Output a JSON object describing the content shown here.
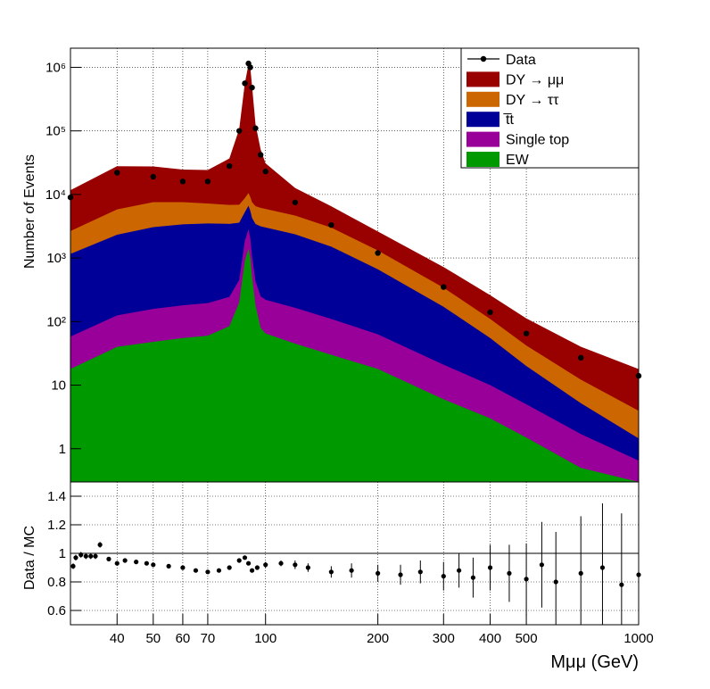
{
  "chart_data": [
    {
      "type": "area",
      "stacked": true,
      "x_scale": "log",
      "y_scale": "log",
      "xlim": [
        30,
        1000
      ],
      "ylim": [
        0.3,
        2000000
      ],
      "ylabel": "Number of Events",
      "grid": true,
      "legend_position": "top-right",
      "y_tick_labels": [
        "1",
        "10",
        "10²",
        "10³",
        "10⁴",
        "10⁵",
        "10⁶"
      ],
      "y_tick_values": [
        1,
        10,
        100,
        1000,
        10000,
        100000,
        1000000
      ],
      "legend": [
        {
          "label": "Data",
          "marker": "point-line",
          "color": "#000000"
        },
        {
          "label": "DY → μμ",
          "color": "#990000"
        },
        {
          "label": "DY → ττ",
          "color": "#cc6600"
        },
        {
          "label": "t̅t",
          "color": "#000099"
        },
        {
          "label": "Single top",
          "color": "#990099"
        },
        {
          "label": "EW",
          "color": "#009900"
        }
      ],
      "series": [
        {
          "name": "EW",
          "color": "#009900",
          "x": [
            30,
            40,
            50,
            60,
            70,
            80,
            85,
            88,
            90,
            91,
            92,
            94,
            97,
            100,
            120,
            150,
            200,
            300,
            400,
            500,
            700,
            1000
          ],
          "values": [
            18,
            40,
            48,
            55,
            60,
            85,
            200,
            900,
            1400,
            1000,
            500,
            180,
            80,
            65,
            45,
            30,
            18,
            6,
            3,
            1.5,
            0.5,
            0.25
          ]
        },
        {
          "name": "Single top",
          "color": "#990099",
          "x": [
            30,
            40,
            50,
            60,
            70,
            80,
            85,
            88,
            90,
            91,
            92,
            94,
            97,
            100,
            120,
            150,
            200,
            300,
            400,
            500,
            700,
            1000
          ],
          "values": [
            40,
            85,
            110,
            125,
            135,
            160,
            250,
            950,
            1450,
            1050,
            560,
            250,
            170,
            155,
            120,
            80,
            45,
            15,
            7,
            3.5,
            1.2,
            0.4
          ]
        },
        {
          "name": "t̅t",
          "color": "#000099",
          "x": [
            30,
            40,
            50,
            60,
            70,
            80,
            85,
            88,
            90,
            91,
            92,
            94,
            97,
            100,
            120,
            150,
            200,
            300,
            400,
            500,
            700,
            1000
          ],
          "values": [
            1100,
            2200,
            2900,
            3200,
            3300,
            3200,
            3150,
            3400,
            3800,
            3500,
            3200,
            3000,
            2900,
            2800,
            2200,
            1400,
            600,
            150,
            45,
            15,
            3.5,
            0.8
          ]
        },
        {
          "name": "DY → ττ",
          "color": "#cc6600",
          "x": [
            30,
            40,
            50,
            60,
            70,
            80,
            85,
            88,
            90,
            91,
            92,
            94,
            97,
            100,
            120,
            150,
            200,
            300,
            400,
            500,
            700,
            1000
          ],
          "values": [
            1500,
            3500,
            4500,
            4200,
            3700,
            3400,
            3300,
            3500,
            3900,
            3600,
            3300,
            3100,
            3000,
            2900,
            2300,
            1500,
            650,
            170,
            55,
            22,
            7,
            2.5
          ]
        },
        {
          "name": "DY → μμ",
          "color": "#990000",
          "x": [
            30,
            40,
            50,
            60,
            70,
            80,
            85,
            88,
            90,
            91,
            92,
            94,
            97,
            100,
            120,
            150,
            200,
            300,
            400,
            500,
            700,
            1000
          ],
          "values": [
            9000,
            22000,
            20000,
            17000,
            17000,
            30000,
            100000,
            550000,
            1100000,
            1000000,
            500000,
            120000,
            45000,
            25000,
            8000,
            3500,
            1300,
            380,
            150,
            70,
            28,
            14
          ]
        }
      ],
      "data_points": {
        "name": "Data",
        "x": [
          30,
          40,
          50,
          60,
          70,
          80,
          85,
          88,
          90,
          91,
          92,
          94,
          97,
          100,
          120,
          150,
          200,
          300,
          400,
          500,
          700,
          1000
        ],
        "values": [
          9000,
          22000,
          19000,
          16000,
          16000,
          28000,
          100000,
          560000,
          1150000,
          1000000,
          480000,
          110000,
          42000,
          23000,
          7500,
          3300,
          1200,
          350,
          140,
          65,
          27,
          14
        ]
      }
    },
    {
      "type": "scatter",
      "x_scale": "log",
      "xlim": [
        30,
        1000
      ],
      "ylim": [
        0.5,
        1.5
      ],
      "xlabel": "Mμμ (GeV)",
      "ylabel": "Data / MC",
      "grid": true,
      "reference_line": 1,
      "y_tick_labels": [
        "0.6",
        "0.8",
        "1",
        "1.2",
        "1.4"
      ],
      "y_tick_values": [
        0.6,
        0.8,
        1.0,
        1.2,
        1.4
      ],
      "x_tick_labels": [
        "40",
        "50",
        "60",
        "70",
        "100",
        "200",
        "300",
        "400",
        "500",
        "1000"
      ],
      "x_tick_values": [
        40,
        50,
        60,
        70,
        100,
        200,
        300,
        400,
        500,
        1000
      ],
      "x": [
        30.5,
        31,
        32,
        33,
        34,
        35,
        36,
        38,
        40,
        42,
        45,
        48,
        50,
        55,
        60,
        65,
        70,
        75,
        80,
        85,
        88,
        90,
        92,
        95,
        100,
        110,
        120,
        130,
        150,
        170,
        200,
        230,
        260,
        300,
        330,
        360,
        400,
        450,
        500,
        550,
        600,
        700,
        800,
        900,
        1000
      ],
      "values": [
        0.91,
        0.97,
        0.99,
        0.98,
        0.98,
        0.98,
        1.06,
        0.96,
        0.93,
        0.95,
        0.94,
        0.93,
        0.92,
        0.91,
        0.9,
        0.88,
        0.87,
        0.88,
        0.9,
        0.95,
        0.97,
        0.93,
        0.88,
        0.9,
        0.92,
        0.93,
        0.92,
        0.9,
        0.87,
        0.88,
        0.86,
        0.85,
        0.87,
        0.84,
        0.88,
        0.83,
        0.9,
        0.86,
        0.82,
        0.92,
        0.8,
        0.86,
        0.9,
        0.78,
        0.85
      ],
      "errors": [
        0.02,
        0.02,
        0.02,
        0.02,
        0.02,
        0.02,
        0.02,
        0.01,
        0.01,
        0.01,
        0.01,
        0.01,
        0.01,
        0.01,
        0.01,
        0.01,
        0.01,
        0.01,
        0.01,
        0.01,
        0.01,
        0.01,
        0.01,
        0.01,
        0.02,
        0.02,
        0.03,
        0.03,
        0.04,
        0.05,
        0.06,
        0.07,
        0.08,
        0.1,
        0.12,
        0.14,
        0.16,
        0.2,
        0.25,
        0.3,
        0.35,
        0.4,
        0.45,
        0.5,
        0.55
      ]
    }
  ]
}
